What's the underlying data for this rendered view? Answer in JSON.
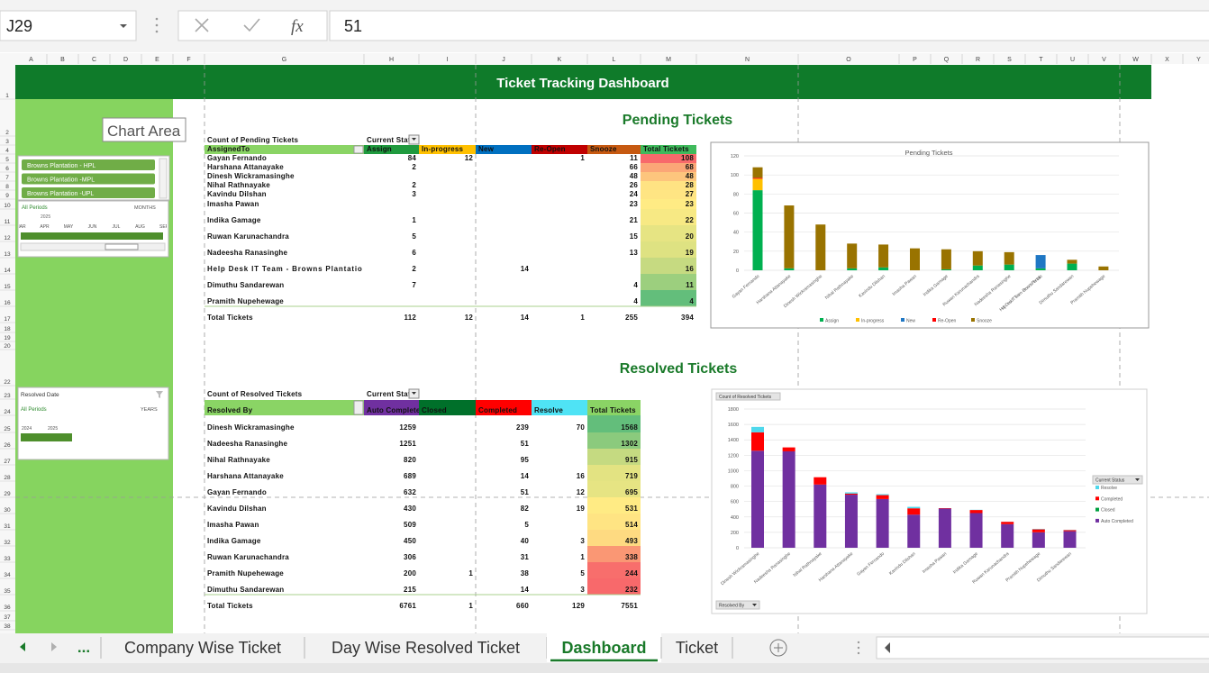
{
  "formula_bar": {
    "name_box": "J29",
    "fx": "fx",
    "value": "51"
  },
  "columns": [
    "A",
    "B",
    "C",
    "D",
    "E",
    "F",
    "G",
    "H",
    "I",
    "J",
    "K",
    "L",
    "M",
    "N",
    "O",
    "P",
    "Q",
    "R",
    "S",
    "T",
    "U",
    "V",
    "W",
    "X",
    "Y"
  ],
  "rows": [
    1,
    2,
    3,
    4,
    5,
    6,
    7,
    8,
    9,
    10,
    11,
    12,
    13,
    14,
    15,
    16,
    17,
    18,
    19,
    20,
    22,
    23,
    24,
    25,
    26,
    27,
    28,
    29,
    30,
    31,
    32,
    33,
    34,
    35,
    36,
    37,
    38
  ],
  "title": "Ticket Tracking Dashboard",
  "tooltip": "Chart Area",
  "slicer": {
    "items": [
      "Browns Plantation - HPL",
      "Browns Plantation -MPL",
      "Browns Plantation -UPL"
    ]
  },
  "period_timeline": {
    "label": "All Periods",
    "level": "MONTHS",
    "year": "2025",
    "months": [
      "MAR",
      "APR",
      "MAY",
      "JUN",
      "JUL",
      "AUG",
      "SEP"
    ]
  },
  "date_timeline": {
    "title": "Resolved Date",
    "label": "All Periods",
    "level": "YEARS",
    "years": [
      "2024",
      "2025"
    ]
  },
  "pending": {
    "heading": "Pending Tickets",
    "caption": "Count of Pending Tickets",
    "filter": "Current Status",
    "row_field": "AssignedTo",
    "total_header": "Total Tickets",
    "columns": [
      {
        "name": "Assign",
        "header_color": "#1f9a3e",
        "color": "#00b050"
      },
      {
        "name": "In-progress",
        "header_color": "#ffc000",
        "color": "#ffc000"
      },
      {
        "name": "New",
        "header_color": "#0070c0",
        "color": "#1f77c4"
      },
      {
        "name": "Re-Open",
        "header_color": "#c00000",
        "color": "#ff0000"
      },
      {
        "name": "Snooze",
        "header_color": "#c65911",
        "color": "#997300"
      }
    ],
    "total_scale": [
      "#63be7b",
      "#ffeb84",
      "#f8696b"
    ],
    "rows": [
      {
        "name": "Gayan Fernando",
        "values": [
          84,
          12,
          null,
          1,
          11
        ],
        "total": 108
      },
      {
        "name": "Harshana Attanayake",
        "values": [
          2,
          null,
          null,
          null,
          66
        ],
        "total": 68
      },
      {
        "name": "Dinesh Wickramasinghe",
        "values": [
          null,
          null,
          null,
          null,
          48
        ],
        "total": 48
      },
      {
        "name": "Nihal Rathnayake",
        "values": [
          2,
          null,
          null,
          null,
          26
        ],
        "total": 28
      },
      {
        "name": "Kavindu Dilshan",
        "values": [
          3,
          null,
          null,
          null,
          24
        ],
        "total": 27
      },
      {
        "name": "Imasha Pawan",
        "values": [
          null,
          null,
          null,
          null,
          23
        ],
        "total": 23
      },
      {
        "name": "Indika Gamage",
        "values": [
          1,
          null,
          null,
          null,
          21
        ],
        "total": 22
      },
      {
        "name": "Ruwan Karunachandra",
        "values": [
          5,
          null,
          null,
          null,
          15
        ],
        "total": 20
      },
      {
        "name": "Nadeesha Ranasinghe",
        "values": [
          6,
          null,
          null,
          null,
          13
        ],
        "total": 19
      },
      {
        "name": "Help Desk IT Team  - Browns Plantatio",
        "values": [
          2,
          null,
          14,
          null,
          null
        ],
        "total": 16
      },
      {
        "name": "Dimuthu Sandarewan",
        "values": [
          7,
          null,
          null,
          null,
          4
        ],
        "total": 11
      },
      {
        "name": "Pramith Nupehewage",
        "values": [
          null,
          null,
          null,
          null,
          4
        ],
        "total": 4
      }
    ],
    "grand_total": {
      "label": "Total Tickets",
      "values": [
        112,
        12,
        14,
        1,
        255
      ],
      "total": 394
    }
  },
  "pending_chart": {
    "title": "Pending Tickets",
    "ylim": [
      0,
      120
    ],
    "yticks": [
      0,
      20,
      40,
      60,
      80,
      100,
      120
    ]
  },
  "resolved": {
    "heading": "Resolved Tickets",
    "caption": "Count of Resolved Tickets",
    "filter": "Current Status",
    "row_field": "Resolved By",
    "total_header": "Total Tickets",
    "columns": [
      {
        "name": "Auto Completed",
        "header_color": "#7030a0",
        "color": "#7030a0"
      },
      {
        "name": "Closed",
        "header_color": "#00702a",
        "color": "#00a040"
      },
      {
        "name": "Completed",
        "header_color": "#ff0000",
        "color": "#ff0000"
      },
      {
        "name": "Resolve",
        "header_color": "#4fe3f5",
        "color": "#4fd8ec"
      }
    ],
    "total_scale": [
      "#f8696b",
      "#ffeb84",
      "#63be7b"
    ],
    "rows": [
      {
        "name": "Dinesh Wickramasinghe",
        "values": [
          1259,
          null,
          239,
          70
        ],
        "total": 1568
      },
      {
        "name": "Nadeesha Ranasinghe",
        "values": [
          1251,
          null,
          51,
          null
        ],
        "total": 1302
      },
      {
        "name": "Nihal Rathnayake",
        "values": [
          820,
          null,
          95,
          null
        ],
        "total": 915
      },
      {
        "name": "Harshana Attanayake",
        "values": [
          689,
          null,
          14,
          16
        ],
        "total": 719
      },
      {
        "name": "Gayan Fernando",
        "values": [
          632,
          null,
          51,
          12
        ],
        "total": 695
      },
      {
        "name": "Kavindu Dilshan",
        "values": [
          430,
          null,
          82,
          19
        ],
        "total": 531
      },
      {
        "name": "Imasha Pawan",
        "values": [
          509,
          null,
          5,
          null
        ],
        "total": 514
      },
      {
        "name": "Indika Gamage",
        "values": [
          450,
          null,
          40,
          3
        ],
        "total": 493
      },
      {
        "name": "Ruwan Karunachandra",
        "values": [
          306,
          null,
          31,
          1
        ],
        "total": 338
      },
      {
        "name": "Pramith Nupehewage",
        "values": [
          200,
          1,
          38,
          5
        ],
        "total": 244
      },
      {
        "name": "Dimuthu Sandarewan",
        "values": [
          215,
          null,
          14,
          3
        ],
        "total": 232
      }
    ],
    "grand_total": {
      "label": "Total Tickets",
      "values": [
        6761,
        1,
        660,
        129
      ],
      "total": 7551
    }
  },
  "resolved_chart": {
    "ylim": [
      0,
      1800
    ],
    "yticks": [
      0,
      200,
      400,
      600,
      800,
      1000,
      1200,
      1400,
      1600,
      1800
    ]
  },
  "sheet_tabs": {
    "more": "...",
    "tabs": [
      "Company Wise Ticket",
      "Day Wise Resolved Ticket",
      "Dashboard",
      "Ticket"
    ],
    "active": 2
  }
}
